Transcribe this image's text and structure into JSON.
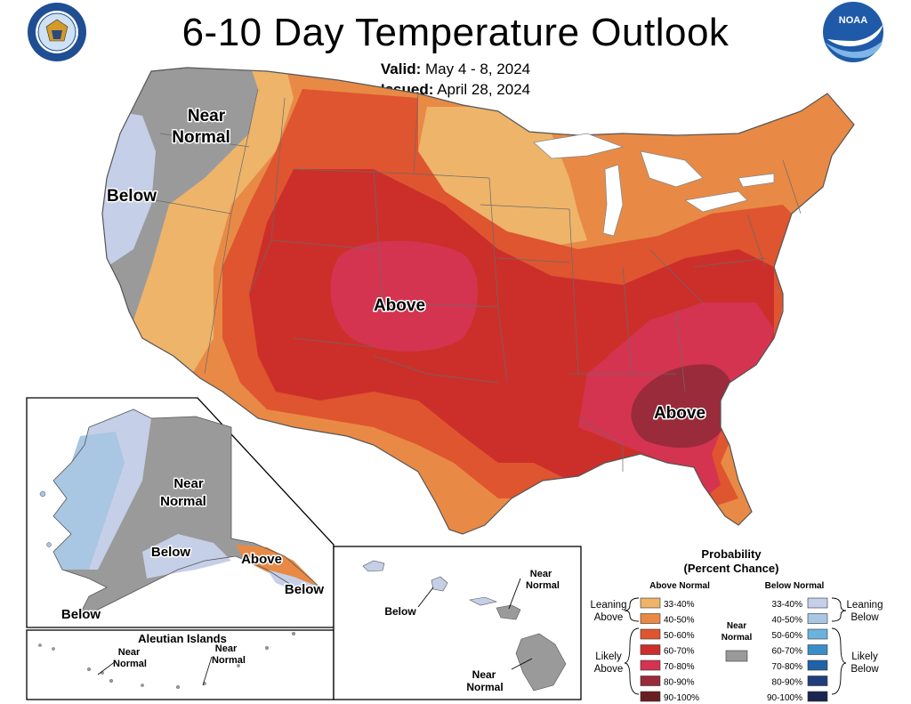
{
  "header": {
    "title": "6-10 Day Temperature Outlook",
    "valid_label": "Valid:",
    "valid_dates": "May 4 - 8, 2024",
    "issued_label": "Issued:",
    "issued_date": "April 28, 2024"
  },
  "logos": {
    "commerce": "DEPARTMENT OF COMMERCE · UNITED STATES OF AMERICA",
    "noaa": "NOAA"
  },
  "map_labels": {
    "conus_near_normal": [
      "Near",
      "Normal"
    ],
    "conus_below": "Below",
    "conus_above_central": "Above",
    "conus_above_southeast": "Above",
    "alaska_near_normal": [
      "Near",
      "Normal"
    ],
    "alaska_below_central": "Below",
    "alaska_above_southeast": "Above",
    "alaska_below_southeast": "Below",
    "alaska_below_southwest": "Below",
    "aleutian_title": "Aleutian Islands",
    "aleutian_near_normal_1": [
      "Near",
      "Normal"
    ],
    "aleutian_near_normal_2": [
      "Near",
      "Normal"
    ],
    "hawaii_below": "Below",
    "hawaii_near_normal_north": [
      "Near",
      "Normal"
    ],
    "hawaii_near_normal_south": [
      "Near",
      "Normal"
    ]
  },
  "legend": {
    "title": "Probability",
    "subtitle": "(Percent Chance)",
    "above_header": "Above Normal",
    "below_header": "Below Normal",
    "near_label": [
      "Near",
      "Normal"
    ],
    "near_color": "#9a9a9a",
    "leaning_above": [
      "Leaning",
      "Above"
    ],
    "likely_above": [
      "Likely",
      "Above"
    ],
    "leaning_below": [
      "Leaning",
      "Below"
    ],
    "likely_below": [
      "Likely",
      "Below"
    ],
    "above": [
      {
        "range": "33-40%",
        "color": "#edb46a"
      },
      {
        "range": "40-50%",
        "color": "#e88a45"
      },
      {
        "range": "50-60%",
        "color": "#de5530"
      },
      {
        "range": "60-70%",
        "color": "#cc2f2a"
      },
      {
        "range": "70-80%",
        "color": "#d53450"
      },
      {
        "range": "80-90%",
        "color": "#9a2b3b"
      },
      {
        "range": "90-100%",
        "color": "#6b1e22"
      }
    ],
    "below": [
      {
        "range": "33-40%",
        "color": "#c5cfe8"
      },
      {
        "range": "40-50%",
        "color": "#a9c6e2"
      },
      {
        "range": "50-60%",
        "color": "#6bb3dd"
      },
      {
        "range": "60-70%",
        "color": "#3a8ec8"
      },
      {
        "range": "70-80%",
        "color": "#1f62a7"
      },
      {
        "range": "80-90%",
        "color": "#213e7c"
      },
      {
        "range": "90-100%",
        "color": "#1a2650"
      }
    ]
  }
}
